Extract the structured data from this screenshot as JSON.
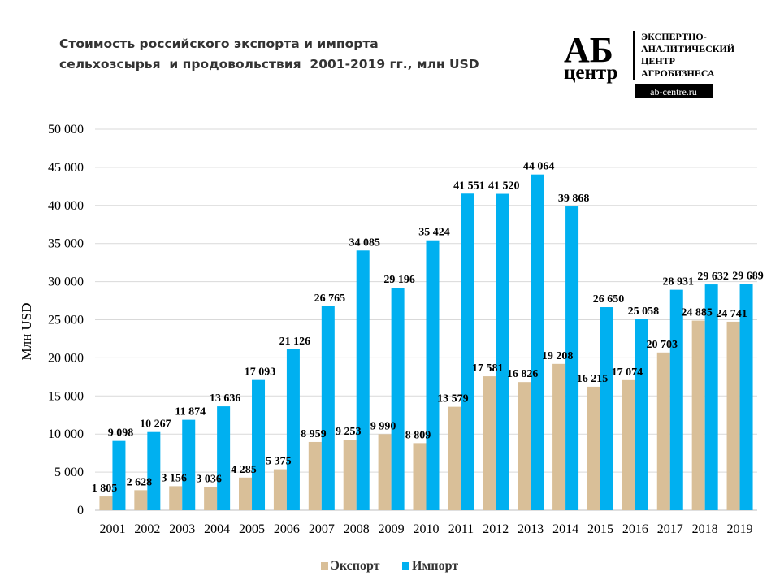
{
  "chart_data": {
    "type": "bar",
    "title_lines": [
      "Стоимость российского экспорта и импорта",
      "сельхозсырья  и продовольствия  2001-2019 гг., млн USD"
    ],
    "ylabel": "Млн USD",
    "xlabel": "",
    "ylim": [
      0,
      50000
    ],
    "yticks": [
      "0",
      "5 000",
      "10 000",
      "15 000",
      "20 000",
      "25 000",
      "30 000",
      "35 000",
      "40 000",
      "45 000",
      "50 000"
    ],
    "grid": true,
    "legend_position": "bottom",
    "categories": [
      "2001",
      "2002",
      "2003",
      "2004",
      "2005",
      "2006",
      "2007",
      "2008",
      "2009",
      "2010",
      "2011",
      "2012",
      "2013",
      "2014",
      "2015",
      "2016",
      "2017",
      "2018",
      "2019"
    ],
    "series": [
      {
        "name": "Экспорт",
        "color": "#D9BF98",
        "values": [
          1805,
          2628,
          3156,
          3036,
          4285,
          5375,
          8959,
          9253,
          9990,
          8809,
          13579,
          17581,
          16826,
          19208,
          16215,
          17074,
          20703,
          24885,
          24741
        ],
        "labels": [
          "1 805",
          "2 628",
          "3 156",
          "3 036",
          "4 285",
          "5 375",
          "8 959",
          "9 253",
          "9 990",
          "8 809",
          "13 579",
          "17 581",
          "16 826",
          "19 208",
          "16 215",
          "17 074",
          "20 703",
          "24 885",
          "24 741"
        ]
      },
      {
        "name": "Импорт",
        "color": "#00B0F0",
        "values": [
          9098,
          10267,
          11874,
          13636,
          17093,
          21126,
          26765,
          34085,
          29196,
          35424,
          41551,
          41520,
          44064,
          39868,
          26650,
          25058,
          28931,
          29632,
          29689
        ],
        "labels": [
          "9 098",
          "10 267",
          "11 874",
          "13 636",
          "17 093",
          "21 126",
          "26 765",
          "34 085",
          "29 196",
          "35 424",
          "41 551",
          "41 520",
          "44 064",
          "39 868",
          "26 650",
          "25 058",
          "28 931",
          "29 632",
          "29 689"
        ]
      }
    ]
  },
  "logo": {
    "mark_top": "АБ",
    "mark_bottom": "центр",
    "lines": [
      "ЭКСПЕРТНО-",
      "АНАЛИТИЧЕСКИЙ",
      "ЦЕНТР",
      "АГРОБИЗНЕСА"
    ],
    "url": "ab-centre.ru"
  }
}
